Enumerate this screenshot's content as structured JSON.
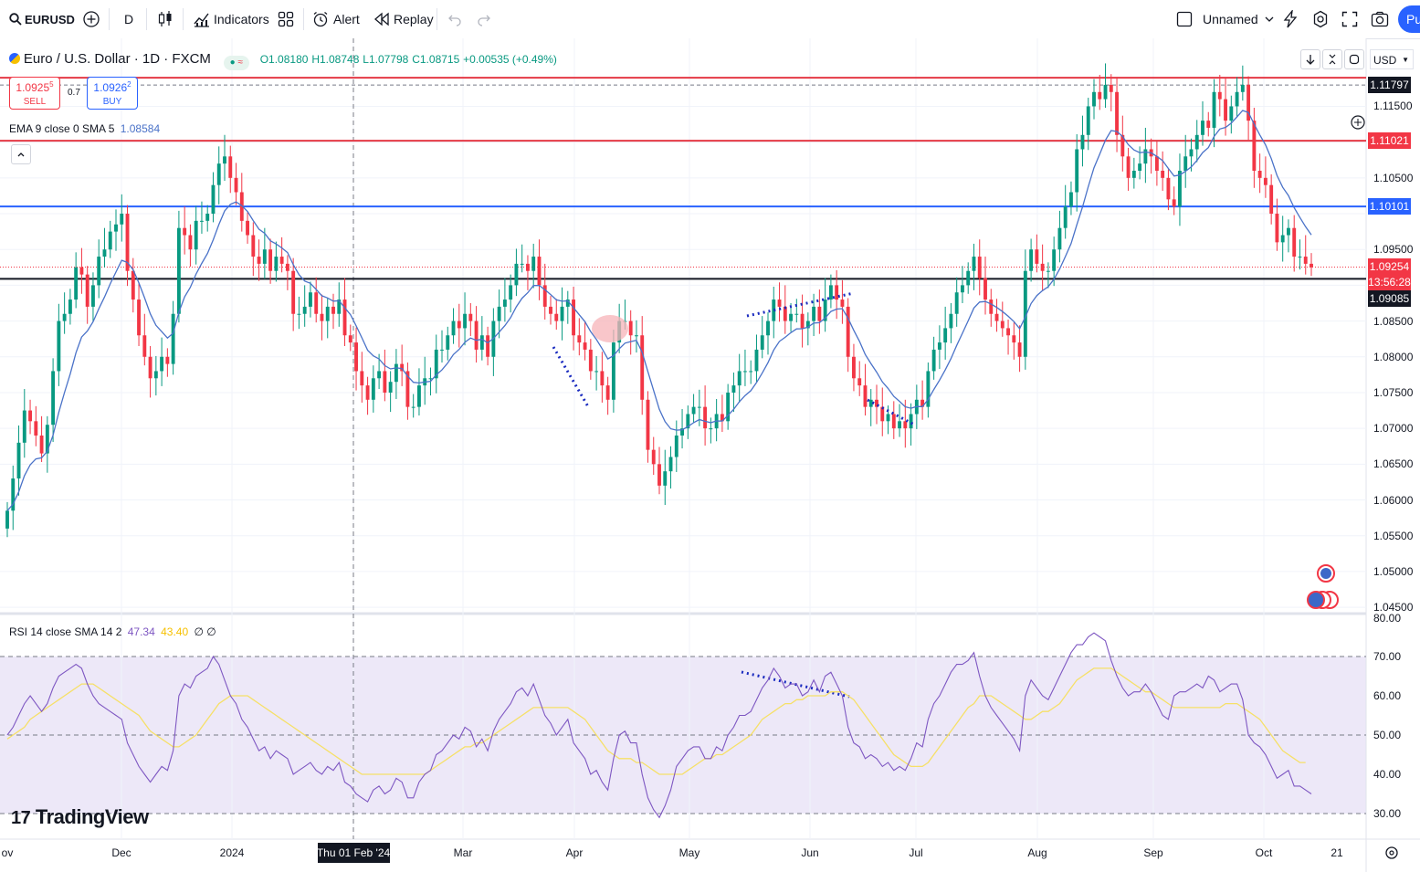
{
  "toolbar": {
    "symbol": "EURUSD",
    "interval": "D",
    "indicators_label": "Indicators",
    "alert_label": "Alert",
    "replay_label": "Replay",
    "layout_name": "Unnamed",
    "publish_label": "Pu"
  },
  "legend": {
    "title": "Euro / U.S. Dollar · 1D · FXCM",
    "open": "O1.08180",
    "high": "H1.08748",
    "low": "L1.07798",
    "close": "C1.08715",
    "change": "+0.00535 (+0.49%)",
    "sell_price": "1.0925",
    "sell_sup": "5",
    "sell_label": "SELL",
    "spread": "0.7",
    "buy_price": "1.0926",
    "buy_sup": "2",
    "buy_label": "BUY",
    "ema_label": "EMA 9 close 0 SMA 5",
    "ema_value": "1.08584"
  },
  "rsi_legend": {
    "label": "RSI 14 close SMA 14 2",
    "rsi_value": "47.34",
    "sma_value": "43.40",
    "extra": "∅ ∅"
  },
  "currency": "USD",
  "logo_text": "TradingView",
  "price_axis": [
    "1.11500",
    "1.10500",
    "1.09500",
    "1.08500",
    "1.08000",
    "1.07500",
    "1.07000",
    "1.06500",
    "1.06000",
    "1.05500",
    "1.05000",
    "1.04500"
  ],
  "rsi_axis": [
    "80.00",
    "70.00",
    "60.00",
    "50.00",
    "40.00",
    "30.00"
  ],
  "price_badges": [
    {
      "label": "1.11797",
      "bg": "#131722"
    },
    {
      "label": "1.11021",
      "bg": "#f23645"
    },
    {
      "label": "1.10101",
      "bg": "#2962ff"
    },
    {
      "label": "1.09254",
      "bg": "#f23645"
    },
    {
      "label": "13:56:28",
      "bg": "#f23645"
    },
    {
      "label": "1.09085",
      "bg": "#131722"
    }
  ],
  "time_axis": [
    "ov",
    "Dec",
    "2024",
    "Thu 01 Feb '24",
    "Mar",
    "Apr",
    "May",
    "Jun",
    "Jul",
    "Aug",
    "Sep",
    "Oct",
    "21"
  ],
  "colors": {
    "up": "#089981",
    "down": "#f23645",
    "ema": "#4a72c8",
    "rsi": "#7e57c2",
    "rsi_sma": "#f6e067",
    "blue_line": "#2962ff",
    "red_line": "#e53945",
    "black_line": "#131722"
  },
  "chart_data": {
    "type": "candlestick",
    "horizontal_levels": [
      1.119,
      1.1102,
      1.101,
      1.0909
    ],
    "y_range": [
      1.0445,
      1.1245
    ],
    "x_range": [
      "2023-11-01",
      "2024-10-24"
    ],
    "closes": [
      1.0585,
      1.063,
      1.068,
      1.0725,
      1.071,
      1.069,
      1.0665,
      1.0705,
      1.078,
      1.085,
      1.086,
      1.088,
      1.0925,
      1.0915,
      1.087,
      1.09,
      1.094,
      1.095,
      1.0975,
      1.0985,
      1.1,
      1.092,
      1.088,
      1.083,
      1.08,
      1.077,
      1.078,
      1.08,
      1.079,
      1.086,
      1.098,
      1.097,
      1.095,
      1.099,
      1.099,
      1.1,
      1.104,
      1.107,
      1.108,
      1.105,
      1.103,
      1.099,
      1.097,
      1.094,
      1.093,
      1.095,
      1.092,
      1.094,
      1.093,
      1.092,
      1.086,
      1.086,
      1.087,
      1.089,
      1.086,
      1.085,
      1.087,
      1.086,
      1.088,
      1.083,
      1.082,
      1.078,
      1.076,
      1.074,
      1.077,
      1.078,
      1.075,
      1.0765,
      1.079,
      1.078,
      1.073,
      1.073,
      1.076,
      1.077,
      1.077,
      1.081,
      1.081,
      1.083,
      1.085,
      1.084,
      1.086,
      1.085,
      1.081,
      1.083,
      1.08,
      1.085,
      1.087,
      1.088,
      1.09,
      1.093,
      1.093,
      1.092,
      1.094,
      1.09,
      1.087,
      1.086,
      1.085,
      1.087,
      1.088,
      1.083,
      1.082,
      1.081,
      1.078,
      1.078,
      1.076,
      1.074,
      1.082,
      1.085,
      1.085,
      1.083,
      1.083,
      1.074,
      1.067,
      1.065,
      1.062,
      1.064,
      1.066,
      1.069,
      1.07,
      1.072,
      1.073,
      1.073,
      1.07,
      1.07,
      1.072,
      1.071,
      1.075,
      1.076,
      1.078,
      1.078,
      1.078,
      1.081,
      1.083,
      1.085,
      1.088,
      1.087,
      1.085,
      1.086,
      1.086,
      1.084,
      1.085,
      1.087,
      1.085,
      1.088,
      1.09,
      1.088,
      1.087,
      1.08,
      1.077,
      1.076,
      1.073,
      1.074,
      1.073,
      1.071,
      1.072,
      1.07,
      1.071,
      1.07,
      1.072,
      1.074,
      1.073,
      1.078,
      1.081,
      1.082,
      1.084,
      1.086,
      1.089,
      1.09,
      1.092,
      1.094,
      1.091,
      1.088,
      1.086,
      1.085,
      1.084,
      1.083,
      1.082,
      1.08,
      1.092,
      1.095,
      1.093,
      1.092,
      1.092,
      1.095,
      1.098,
      1.101,
      1.103,
      1.109,
      1.111,
      1.115,
      1.117,
      1.116,
      1.118,
      1.117,
      1.111,
      1.108,
      1.105,
      1.106,
      1.107,
      1.109,
      1.108,
      1.106,
      1.105,
      1.102,
      1.101,
      1.106,
      1.108,
      1.109,
      1.111,
      1.113,
      1.112,
      1.117,
      1.116,
      1.113,
      1.115,
      1.117,
      1.118,
      1.113,
      1.106,
      1.105,
      1.104,
      1.1,
      1.096,
      1.097,
      1.098,
      1.094,
      1.094,
      1.093,
      1.0925
    ],
    "rsi": [
      50,
      52,
      55,
      58,
      60,
      58,
      56,
      58,
      62,
      65,
      66,
      67,
      68,
      67,
      63,
      60,
      58,
      57,
      56,
      55,
      54,
      48,
      45,
      42,
      40,
      38,
      40,
      42,
      41,
      46,
      60,
      63,
      62,
      65,
      66,
      67,
      70,
      68,
      64,
      60,
      58,
      54,
      52,
      49,
      46,
      47,
      44,
      46,
      45,
      44,
      40,
      41,
      42,
      43,
      41,
      40,
      42,
      41,
      43,
      38,
      37,
      35,
      34,
      33,
      36,
      37,
      35,
      36,
      39,
      38,
      34,
      34,
      38,
      40,
      41,
      45,
      46,
      48,
      50,
      49,
      52,
      51,
      47,
      49,
      46,
      51,
      54,
      56,
      58,
      61,
      62,
      60,
      63,
      59,
      55,
      53,
      50,
      52,
      54,
      48,
      46,
      44,
      40,
      41,
      38,
      36,
      44,
      50,
      51,
      48,
      48,
      40,
      34,
      31,
      29,
      32,
      36,
      42,
      44,
      46,
      47,
      47,
      44,
      44,
      47,
      46,
      50,
      52,
      55,
      55,
      56,
      59,
      62,
      64,
      67,
      65,
      62,
      63,
      63,
      60,
      61,
      64,
      61,
      65,
      66,
      63,
      60,
      52,
      48,
      47,
      44,
      45,
      44,
      42,
      43,
      41,
      42,
      41,
      44,
      48,
      47,
      54,
      58,
      60,
      63,
      66,
      68,
      68,
      69,
      71,
      65,
      60,
      57,
      55,
      53,
      51,
      49,
      46,
      60,
      64,
      62,
      60,
      59,
      62,
      65,
      68,
      71,
      73,
      73,
      75,
      76,
      75,
      74,
      69,
      65,
      62,
      60,
      61,
      61,
      63,
      61,
      58,
      55,
      54,
      60,
      61,
      61,
      62,
      63,
      62,
      65,
      64,
      61,
      62,
      63,
      63,
      59,
      50,
      48,
      47,
      45,
      42,
      39,
      40,
      41,
      37,
      37,
      36,
      35
    ],
    "rsi_sma": [
      49,
      50,
      51,
      52,
      54,
      55,
      56,
      57,
      58,
      59,
      60,
      61,
      62,
      63,
      63,
      63,
      62,
      61,
      60,
      59,
      58,
      57,
      56,
      55,
      53,
      51,
      50,
      49,
      48,
      47,
      47,
      48,
      49,
      50,
      52,
      54,
      56,
      58,
      59,
      60,
      60,
      60,
      60,
      59,
      58,
      57,
      56,
      55,
      54,
      53,
      52,
      51,
      50,
      49,
      48,
      47,
      46,
      45,
      44,
      43,
      42,
      41,
      40,
      40,
      40,
      40,
      40,
      40,
      40,
      40,
      40,
      40,
      40,
      40,
      41,
      42,
      43,
      44,
      45,
      46,
      47,
      47,
      48,
      48,
      49,
      50,
      51,
      52,
      53,
      54,
      55,
      56,
      57,
      57,
      57,
      57,
      57,
      57,
      57,
      56,
      55,
      54,
      52,
      50,
      48,
      46,
      45,
      44,
      44,
      44,
      43,
      43,
      42,
      41,
      40,
      40,
      40,
      40,
      40,
      41,
      42,
      43,
      44,
      44,
      45,
      45,
      46,
      47,
      48,
      49,
      50,
      52,
      54,
      55,
      56,
      57,
      58,
      58,
      59,
      59,
      60,
      60,
      60,
      60,
      61,
      61,
      61,
      60,
      59,
      57,
      55,
      53,
      51,
      49,
      47,
      45,
      44,
      43,
      42,
      42,
      42,
      43,
      45,
      47,
      49,
      51,
      53,
      55,
      57,
      58,
      60,
      60,
      60,
      59,
      58,
      57,
      56,
      55,
      54,
      54,
      55,
      56,
      56,
      57,
      58,
      60,
      62,
      64,
      65,
      66,
      67,
      67,
      67,
      67,
      66,
      65,
      64,
      63,
      62,
      61,
      61,
      60,
      59,
      58,
      57,
      57,
      57,
      57,
      57,
      57,
      57,
      57,
      57,
      58,
      58,
      58,
      57,
      56,
      55,
      54,
      52,
      50,
      48,
      46,
      45,
      44,
      43,
      43
    ]
  }
}
